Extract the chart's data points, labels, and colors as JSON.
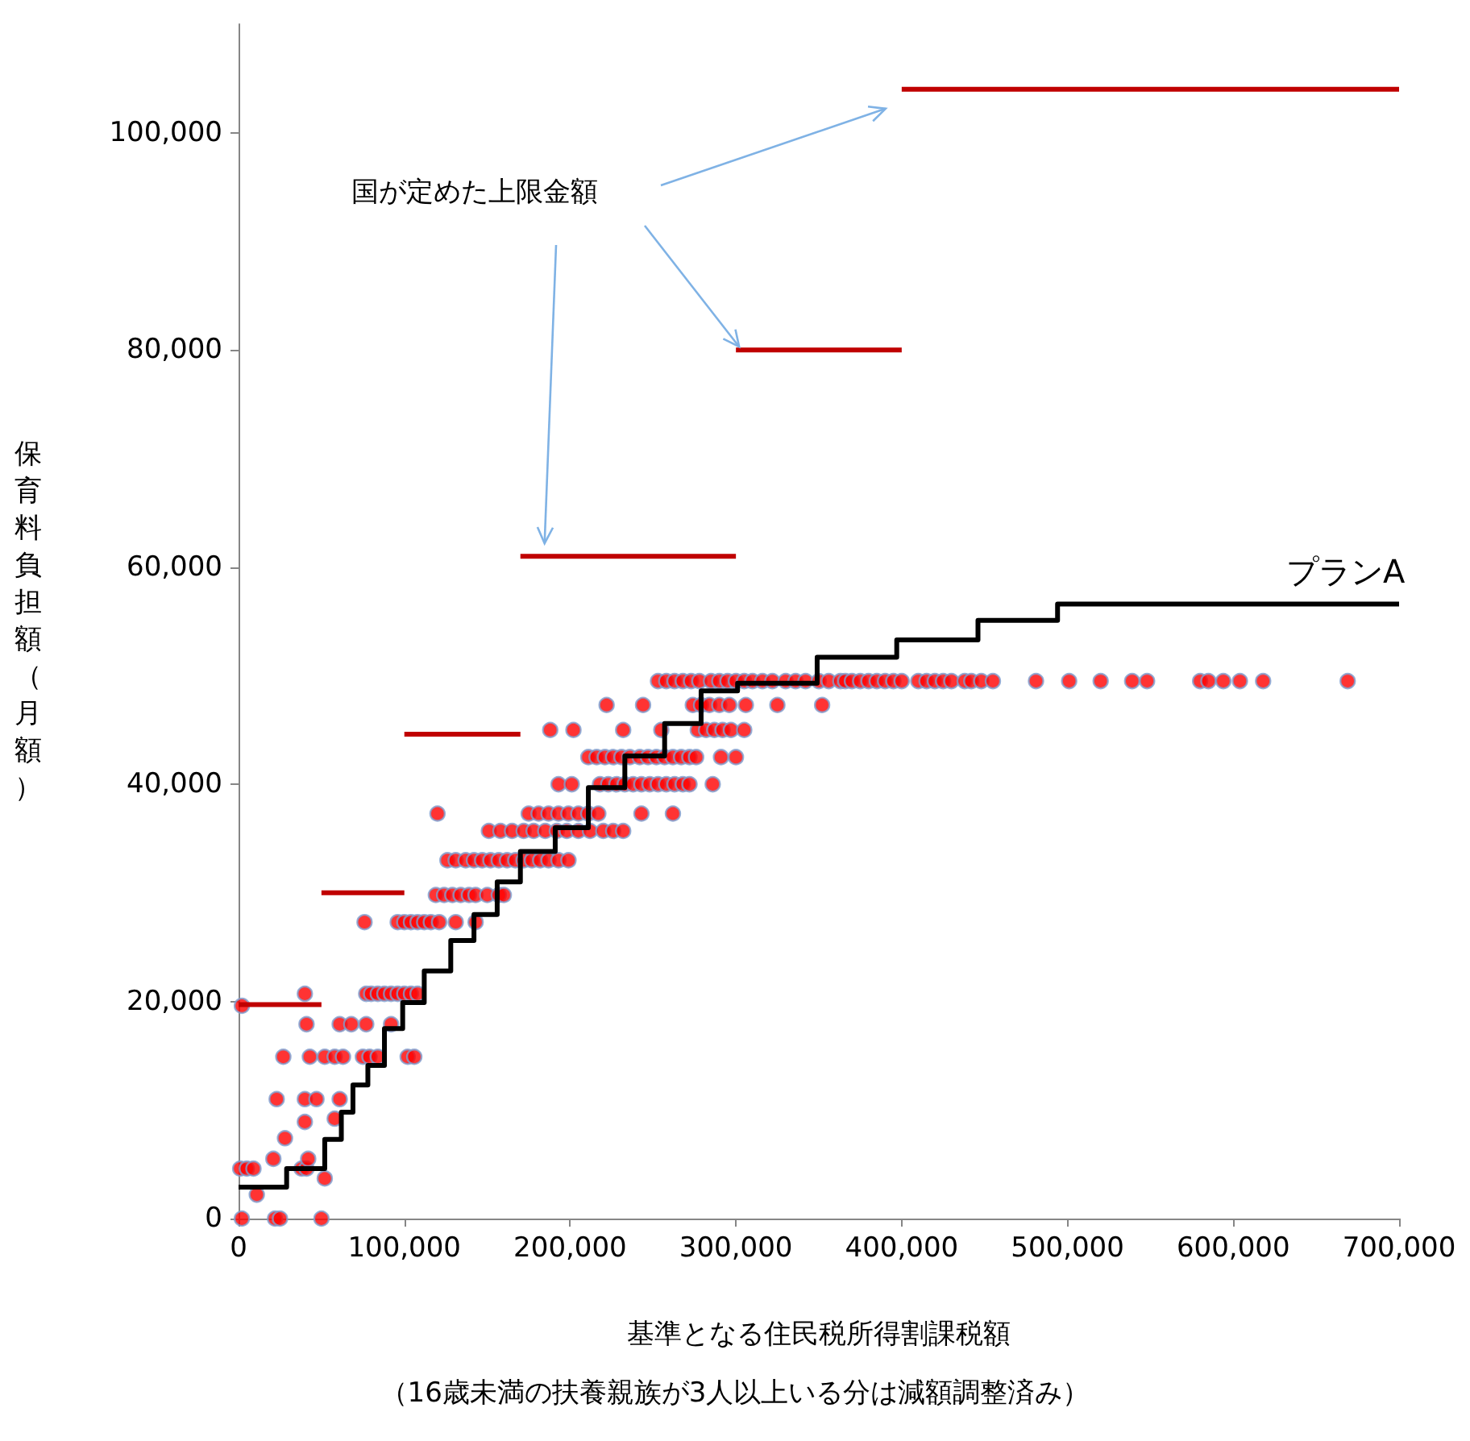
{
  "chart_data": {
    "type": "scatter",
    "xlabel": "基準となる住民税所得割課税額",
    "ylabel": "保育料負担額（月額）",
    "annotations": [
      "国が定めた上限金額",
      "（16歳未満の扶養親族が3人以上いる分は減額調整済み）"
    ],
    "xlim": [
      0,
      700000
    ],
    "xticks": [
      {
        "value": 0,
        "label": "0"
      },
      {
        "value": 100000,
        "label": "100,000"
      },
      {
        "value": 200000,
        "label": "200,000"
      },
      {
        "value": 300000,
        "label": "300,000"
      },
      {
        "value": 400000,
        "label": "400,000"
      },
      {
        "value": 500000,
        "label": "500,000"
      },
      {
        "value": 600000,
        "label": "600,000"
      },
      {
        "value": 700000,
        "label": "700,000"
      }
    ],
    "ylim": [
      0,
      110000
    ],
    "yticks": [
      {
        "value": 0,
        "label": "0"
      },
      {
        "value": 20000,
        "label": "20,000"
      },
      {
        "value": 40000,
        "label": "40,000"
      },
      {
        "value": 60000,
        "label": "60,000"
      },
      {
        "value": 80000,
        "label": "80,000"
      },
      {
        "value": 100000,
        "label": "100,000"
      }
    ],
    "grid": false,
    "legend": false,
    "series": [
      {
        "marker": "circle",
        "color": "#ff0000",
        "x": [
          2000,
          22000,
          25000,
          50000,
          11000,
          52000,
          1000,
          5000,
          9000,
          38000,
          41000,
          21000,
          42000,
          28000,
          40000,
          58000,
          23000,
          40000,
          47000,
          61000,
          27000,
          43000,
          52000,
          58000,
          63000,
          75000,
          79000,
          84000,
          102000,
          106000,
          41000,
          61000,
          68000,
          77000,
          92000,
          2000,
          40000,
          77000,
          80000,
          84000,
          88000,
          92000,
          96000,
          100000,
          104000,
          108000,
          76000,
          96000,
          100000,
          104000,
          108000,
          112000,
          116000,
          121000,
          131000,
          143000,
          119000,
          124000,
          129000,
          134000,
          139000,
          143000,
          150000,
          157000,
          160000,
          126000,
          131000,
          137000,
          142000,
          147000,
          152000,
          157000,
          162000,
          167000,
          172000,
          177000,
          182000,
          187000,
          193000,
          199000,
          151000,
          158000,
          165000,
          172000,
          178000,
          185000,
          192000,
          198000,
          205000,
          212000,
          220000,
          226000,
          232000,
          120000,
          175000,
          181000,
          187000,
          193000,
          199000,
          205000,
          211000,
          217000,
          243000,
          262000,
          193000,
          201000,
          218000,
          223000,
          228000,
          233000,
          238000,
          243000,
          248000,
          253000,
          258000,
          263000,
          268000,
          272000,
          286000,
          211000,
          216000,
          221000,
          226000,
          231000,
          236000,
          242000,
          247000,
          252000,
          257000,
          262000,
          267000,
          272000,
          276000,
          291000,
          300000,
          188000,
          202000,
          232000,
          255000,
          277000,
          282000,
          287000,
          292000,
          297000,
          305000,
          222000,
          244000,
          274000,
          279000,
          284000,
          290000,
          296000,
          306000,
          325000,
          352000,
          253000,
          258000,
          263000,
          268000,
          273000,
          278000,
          285000,
          290000,
          295000,
          300000,
          305000,
          310000,
          316000,
          322000,
          330000,
          336000,
          342000,
          350000,
          356000,
          363000,
          366000,
          370000,
          375000,
          380000,
          385000,
          390000,
          395000,
          400000,
          410000,
          415000,
          420000,
          425000,
          430000,
          438000,
          442000,
          448000,
          455000,
          481000,
          501000,
          520000,
          539000,
          548000,
          580000,
          585000,
          594000,
          604000,
          618000,
          669000
        ],
        "values": [
          0,
          0,
          0,
          0,
          2200,
          3700,
          4600,
          4600,
          4600,
          4600,
          4600,
          5500,
          5500,
          7400,
          8900,
          9200,
          11000,
          11000,
          11000,
          11000,
          14900,
          14900,
          14900,
          14900,
          14900,
          14900,
          14900,
          14900,
          14900,
          14900,
          17900,
          17900,
          17900,
          17900,
          17900,
          19600,
          20700,
          20700,
          20700,
          20700,
          20700,
          20700,
          20700,
          20700,
          20700,
          20700,
          27300,
          27300,
          27300,
          27300,
          27300,
          27300,
          27300,
          27300,
          27300,
          27300,
          29800,
          29800,
          29800,
          29800,
          29800,
          29800,
          29800,
          29800,
          29800,
          33000,
          33000,
          33000,
          33000,
          33000,
          33000,
          33000,
          33000,
          33000,
          33000,
          33000,
          33000,
          33000,
          33000,
          33000,
          35700,
          35700,
          35700,
          35700,
          35700,
          35700,
          35700,
          35700,
          35700,
          35700,
          35700,
          35700,
          35700,
          37300,
          37300,
          37300,
          37300,
          37300,
          37300,
          37300,
          37300,
          37300,
          37300,
          37300,
          40000,
          40000,
          40000,
          40000,
          40000,
          40000,
          40000,
          40000,
          40000,
          40000,
          40000,
          40000,
          40000,
          40000,
          40000,
          42500,
          42500,
          42500,
          42500,
          42500,
          42500,
          42500,
          42500,
          42500,
          42500,
          42500,
          42500,
          42500,
          42500,
          42500,
          42500,
          45000,
          45000,
          45000,
          45000,
          45000,
          45000,
          45000,
          45000,
          45000,
          45000,
          47300,
          47300,
          47300,
          47300,
          47300,
          47300,
          47300,
          47300,
          47300,
          47300,
          49500,
          49500,
          49500,
          49500,
          49500,
          49500,
          49500,
          49500,
          49500,
          49500,
          49500,
          49500,
          49500,
          49500,
          49500,
          49500,
          49500,
          49500,
          49500,
          49500,
          49500,
          49500,
          49500,
          49500,
          49500,
          49500,
          49500,
          49500,
          49500,
          49500,
          49500,
          49500,
          49500,
          49500,
          49500,
          49500,
          49500,
          49500,
          49500,
          49500,
          49500,
          49500,
          49500,
          49500,
          49500,
          49500,
          49500,
          49500
        ]
      },
      {
        "type": "step",
        "name": "プランA",
        "marker": "none",
        "color": "#000000",
        "x": [
          0,
          29000,
          52000,
          62000,
          69000,
          78000,
          88000,
          99000,
          112000,
          128000,
          142000,
          156000,
          170000,
          191000,
          211000,
          233000,
          257000,
          279000,
          301000,
          349000,
          397000,
          446000,
          494000,
          700000
        ],
        "values": [
          2900,
          4600,
          7300,
          9800,
          12300,
          14100,
          17500,
          19900,
          22800,
          25600,
          28000,
          31000,
          33800,
          36000,
          39700,
          42600,
          45600,
          48600,
          49300,
          51700,
          53300,
          55100,
          56600,
          56600
        ]
      },
      {
        "type": "line",
        "marker": "none",
        "color": "#c00000",
        "x": [
          0,
          50000
        ],
        "values": [
          19700,
          19700
        ]
      },
      {
        "type": "line",
        "marker": "none",
        "color": "#c00000",
        "x": [
          50000,
          100000
        ],
        "values": [
          30000,
          30000
        ]
      },
      {
        "type": "line",
        "marker": "none",
        "color": "#c00000",
        "x": [
          100000,
          170000
        ],
        "values": [
          44600,
          44600
        ]
      },
      {
        "type": "line",
        "marker": "none",
        "color": "#c00000",
        "x": [
          170000,
          300000
        ],
        "values": [
          61000,
          61000
        ]
      },
      {
        "type": "line",
        "marker": "none",
        "color": "#c00000",
        "x": [
          300000,
          400000
        ],
        "values": [
          80000,
          80000
        ]
      },
      {
        "type": "line",
        "marker": "none",
        "color": "#c00000",
        "x": [
          400000,
          700000
        ],
        "values": [
          104000,
          104000
        ]
      }
    ]
  }
}
